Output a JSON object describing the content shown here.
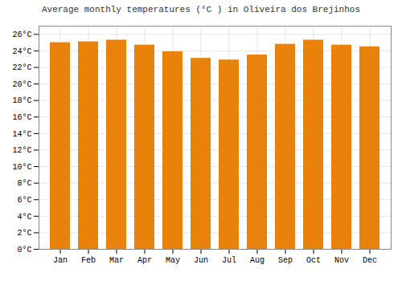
{
  "chart_data": {
    "type": "bar",
    "title": "Average monthly temperatures (°C ) in Oliveira dos Brejinhos",
    "categories": [
      "Jan",
      "Feb",
      "Mar",
      "Apr",
      "May",
      "Jun",
      "Jul",
      "Aug",
      "Sep",
      "Oct",
      "Nov",
      "Dec"
    ],
    "values": [
      25.0,
      25.1,
      25.3,
      24.7,
      23.9,
      23.1,
      22.9,
      23.5,
      24.8,
      25.3,
      24.7,
      24.5
    ],
    "color": "#E8820A",
    "ylim": [
      0,
      27
    ],
    "yticks": [
      {
        "value": 0,
        "label": "0°C"
      },
      {
        "value": 2,
        "label": "2°C"
      },
      {
        "value": 4,
        "label": "4°C"
      },
      {
        "value": 6,
        "label": "6°C"
      },
      {
        "value": 8,
        "label": "8°C"
      },
      {
        "value": 10,
        "label": "10°C"
      },
      {
        "value": 12,
        "label": "12°C"
      },
      {
        "value": 14,
        "label": "14°C"
      },
      {
        "value": 16,
        "label": "16°C"
      },
      {
        "value": 18,
        "label": "18°C"
      },
      {
        "value": 20,
        "label": "20°C"
      },
      {
        "value": 22,
        "label": "22°C"
      },
      {
        "value": 24,
        "label": "24°C"
      },
      {
        "value": 26,
        "label": "26°C"
      }
    ],
    "grid": true
  }
}
